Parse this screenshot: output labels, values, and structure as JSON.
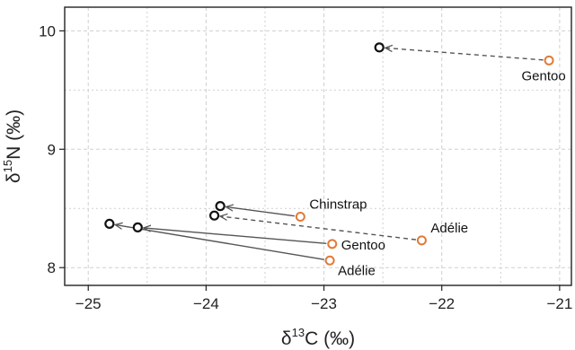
{
  "chart_data": {
    "type": "scatter",
    "title": "",
    "xlabel": {
      "prefix": "δ",
      "sup": "13",
      "suffix": "C (‰)"
    },
    "ylabel": {
      "prefix": "δ",
      "sup": "15",
      "suffix": "N (‰)"
    },
    "xlim": [
      -25.2,
      -20.9
    ],
    "ylim": [
      7.85,
      10.2
    ],
    "xticks": [
      -25,
      -24,
      -23,
      -22,
      -21
    ],
    "xtick_labels": [
      "−25",
      "−24",
      "−23",
      "−22",
      "−21"
    ],
    "yticks": [
      8,
      9,
      10
    ],
    "ytick_labels": [
      "8",
      "9",
      "10"
    ],
    "grid": true,
    "colors": {
      "start": "#e07b39",
      "end": "#111111",
      "arrow": "#555555",
      "grid": "#cfcfcf"
    },
    "arrows": [
      {
        "label": "Gentoo",
        "from": [
          -21.09,
          9.75
        ],
        "to": [
          -22.53,
          9.86
        ],
        "style": "dashed",
        "label_anchor": "below"
      },
      {
        "label": "Chinstrap",
        "from": [
          -23.2,
          8.43
        ],
        "to": [
          -23.88,
          8.52
        ],
        "style": "solid",
        "label_anchor": "above-right"
      },
      {
        "label": "Adélie",
        "from": [
          -22.17,
          8.23
        ],
        "to": [
          -23.93,
          8.44
        ],
        "style": "dashed",
        "label_anchor": "above-right"
      },
      {
        "label": "Gentoo",
        "from": [
          -22.93,
          8.2
        ],
        "to": [
          -24.58,
          8.34
        ],
        "style": "solid",
        "label_anchor": "right"
      },
      {
        "label": "Adélie",
        "from": [
          -22.95,
          8.06
        ],
        "to": [
          -24.82,
          8.37
        ],
        "style": "solid",
        "label_anchor": "below-right"
      }
    ]
  }
}
